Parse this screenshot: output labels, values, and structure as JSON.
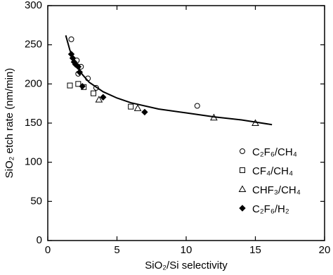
{
  "chart_data": {
    "type": "scatter",
    "x_label": "SiO₂/Si selectivity",
    "y_label": "SiO₂ etch rate (nm/min)",
    "xlim": [
      0,
      20
    ],
    "xticks": [
      0,
      5,
      10,
      15,
      20
    ],
    "ylim": [
      0,
      300
    ],
    "yticks": [
      0,
      50,
      100,
      150,
      200,
      250,
      300
    ],
    "color": "#000000",
    "legend": "lower right",
    "series": [
      {
        "name": "C₂F₆/CH₄",
        "marker": "circle",
        "filled": false,
        "x": [
          1.7,
          2.1,
          2.4,
          2.2,
          2.9,
          3.5,
          10.8
        ],
        "y": [
          257,
          230,
          222,
          213,
          207,
          195,
          172
        ]
      },
      {
        "name": "CF₄/CH₄",
        "marker": "square",
        "filled": false,
        "x": [
          1.6,
          2.2,
          2.6,
          3.3,
          6.0
        ],
        "y": [
          198,
          200,
          196,
          188,
          171
        ]
      },
      {
        "name": "CHF₃/CH₄",
        "marker": "triangle",
        "filled": false,
        "x": [
          3.7,
          6.5,
          12.0,
          15.0
        ],
        "y": [
          180,
          169,
          157,
          150
        ]
      },
      {
        "name": "C₂F₆/H₂",
        "marker": "diamond",
        "filled": true,
        "x": [
          1.7,
          1.8,
          1.9,
          2.0,
          2.2,
          2.3,
          2.5,
          4.0,
          7.0
        ],
        "y": [
          238,
          233,
          228,
          225,
          222,
          215,
          197,
          183,
          164
        ]
      }
    ],
    "curve": {
      "x": [
        1.3,
        1.6,
        2,
        2.5,
        3,
        4,
        5,
        6,
        8,
        10,
        12,
        14,
        16.2
      ],
      "y": [
        262,
        243,
        226,
        212,
        202,
        190,
        182,
        176,
        168,
        163,
        158,
        154,
        148
      ]
    }
  }
}
